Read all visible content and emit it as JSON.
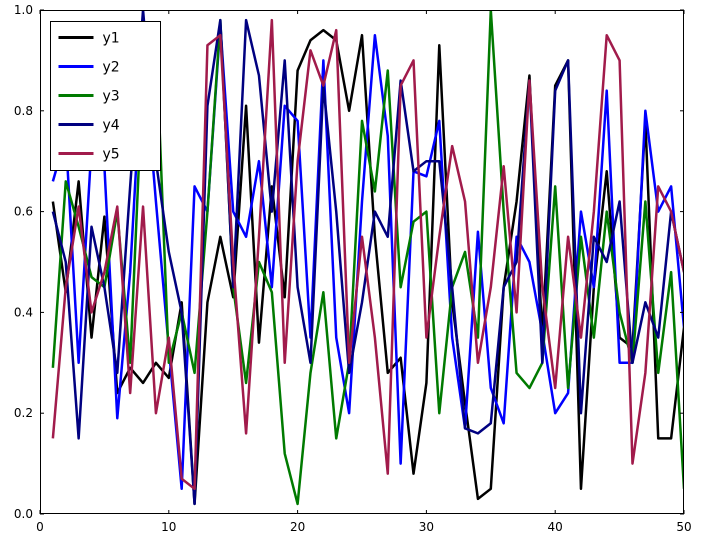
{
  "figure": {
    "background": "#ffffff",
    "axes_edge_color": "#000000"
  },
  "chart_data": {
    "type": "line",
    "title": "",
    "xlabel": "",
    "ylabel": "",
    "grid": false,
    "xlim": [
      0,
      50
    ],
    "ylim": [
      0.0,
      1.0
    ],
    "xticks": [
      0,
      10,
      20,
      30,
      40,
      50
    ],
    "xtick_labels": [
      "0",
      "10",
      "20",
      "30",
      "40",
      "50"
    ],
    "yticks": [
      0.0,
      0.2,
      0.4,
      0.6,
      0.8,
      1.0
    ],
    "ytick_labels": [
      "0.0",
      "0.2",
      "0.4",
      "0.6",
      "0.8",
      "1.0"
    ],
    "legend": {
      "position": "upper left",
      "border": true,
      "labels": [
        "y1",
        "y2",
        "y3",
        "y4",
        "y5"
      ]
    },
    "x": [
      1,
      2,
      3,
      4,
      5,
      6,
      7,
      8,
      9,
      10,
      11,
      12,
      13,
      14,
      15,
      16,
      17,
      18,
      19,
      20,
      21,
      22,
      23,
      24,
      25,
      26,
      27,
      28,
      29,
      30,
      31,
      32,
      33,
      34,
      35,
      36,
      37,
      38,
      39,
      40,
      41,
      42,
      43,
      44,
      45,
      46,
      47,
      48,
      49,
      50
    ],
    "series": [
      {
        "name": "y1",
        "color": "#000000",
        "values": [
          0.62,
          0.44,
          0.66,
          0.35,
          0.59,
          0.24,
          0.29,
          0.26,
          0.3,
          0.27,
          0.42,
          0.02,
          0.42,
          0.55,
          0.43,
          0.81,
          0.34,
          0.65,
          0.43,
          0.88,
          0.94,
          0.96,
          0.94,
          0.8,
          0.95,
          0.55,
          0.28,
          0.31,
          0.08,
          0.26,
          0.93,
          0.42,
          0.22,
          0.03,
          0.05,
          0.45,
          0.62,
          0.87,
          0.35,
          0.85,
          0.9,
          0.05,
          0.45,
          0.68,
          0.35,
          0.33,
          0.78,
          0.15,
          0.15,
          0.37
        ]
      },
      {
        "name": "y2",
        "color": "#0000ff",
        "values": [
          0.66,
          0.75,
          0.3,
          0.73,
          0.69,
          0.19,
          0.48,
          0.93,
          0.62,
          0.33,
          0.05,
          0.65,
          0.6,
          0.97,
          0.6,
          0.55,
          0.7,
          0.45,
          0.81,
          0.78,
          0.35,
          0.9,
          0.35,
          0.2,
          0.62,
          0.95,
          0.75,
          0.1,
          0.68,
          0.67,
          0.78,
          0.35,
          0.17,
          0.56,
          0.25,
          0.18,
          0.55,
          0.5,
          0.36,
          0.2,
          0.24,
          0.6,
          0.45,
          0.84,
          0.3,
          0.3,
          0.8,
          0.6,
          0.65,
          0.37
        ]
      },
      {
        "name": "y3",
        "color": "#007a00",
        "values": [
          0.29,
          0.66,
          0.57,
          0.47,
          0.45,
          0.6,
          0.3,
          0.88,
          0.95,
          0.3,
          0.4,
          0.28,
          0.6,
          0.98,
          0.45,
          0.26,
          0.5,
          0.44,
          0.12,
          0.02,
          0.28,
          0.44,
          0.15,
          0.3,
          0.78,
          0.64,
          0.88,
          0.45,
          0.58,
          0.6,
          0.2,
          0.45,
          0.52,
          0.35,
          1.0,
          0.6,
          0.28,
          0.25,
          0.3,
          0.65,
          0.25,
          0.55,
          0.35,
          0.6,
          0.4,
          0.3,
          0.62,
          0.28,
          0.48,
          0.05
        ]
      },
      {
        "name": "y4",
        "color": "#000080",
        "values": [
          0.6,
          0.5,
          0.15,
          0.57,
          0.45,
          0.28,
          0.65,
          1.0,
          0.7,
          0.52,
          0.4,
          0.02,
          0.81,
          0.98,
          0.45,
          0.98,
          0.87,
          0.6,
          0.9,
          0.45,
          0.3,
          0.85,
          0.6,
          0.28,
          0.42,
          0.6,
          0.55,
          0.86,
          0.68,
          0.7,
          0.7,
          0.45,
          0.17,
          0.16,
          0.18,
          0.45,
          0.5,
          0.86,
          0.3,
          0.84,
          0.9,
          0.2,
          0.55,
          0.5,
          0.62,
          0.3,
          0.42,
          0.35,
          0.6,
          0.48
        ]
      },
      {
        "name": "y5",
        "color": "#a11b4b",
        "values": [
          0.15,
          0.45,
          0.61,
          0.4,
          0.48,
          0.61,
          0.24,
          0.61,
          0.2,
          0.35,
          0.07,
          0.05,
          0.93,
          0.95,
          0.5,
          0.16,
          0.55,
          0.98,
          0.3,
          0.7,
          0.92,
          0.85,
          0.96,
          0.3,
          0.55,
          0.35,
          0.08,
          0.85,
          0.9,
          0.35,
          0.55,
          0.73,
          0.62,
          0.3,
          0.45,
          0.69,
          0.4,
          0.86,
          0.45,
          0.25,
          0.55,
          0.35,
          0.6,
          0.95,
          0.9,
          0.1,
          0.28,
          0.65,
          0.6,
          0.48
        ]
      }
    ]
  }
}
